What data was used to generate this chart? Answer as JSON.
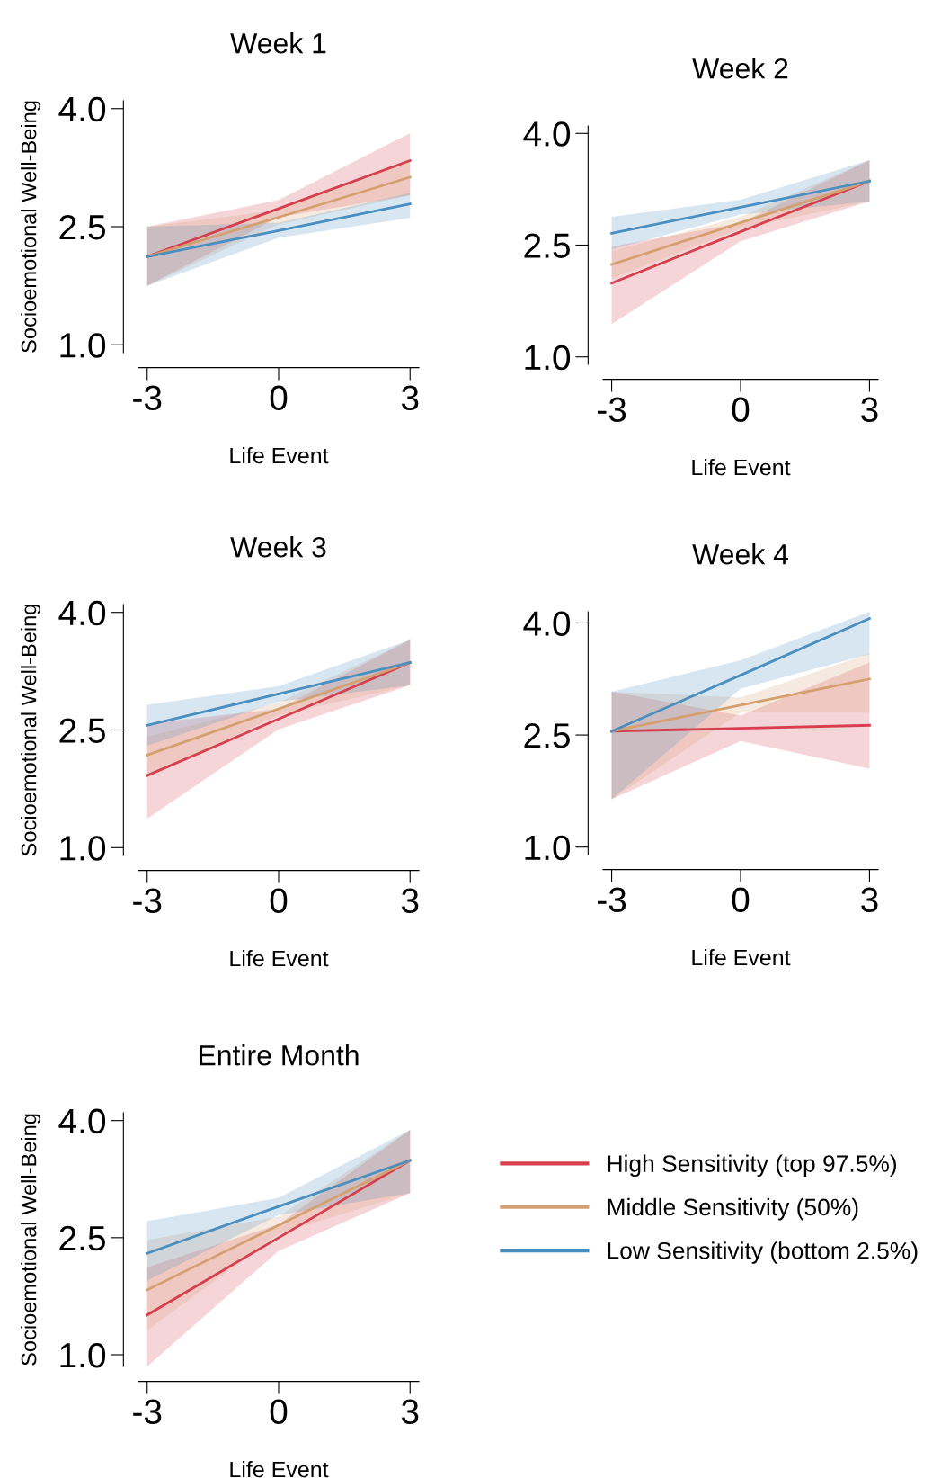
{
  "chart_data": [
    {
      "type": "line",
      "title": "Week 1",
      "xlabel": "Life Event",
      "ylabel": "Socioemotional Well-Being",
      "xlim": [
        -3.2,
        3.2
      ],
      "ylim": [
        0.9,
        4.1
      ],
      "xticks": [
        -3,
        0,
        3
      ],
      "yticks": [
        {
          "value": 1,
          "label": "1.0"
        },
        {
          "value": 2.5,
          "label": "2.5"
        },
        {
          "value": 4,
          "label": "4.0"
        }
      ],
      "series": [
        {
          "color": "#d6404e",
          "x": [
            -3,
            0,
            3
          ],
          "values": [
            2.12,
            2.73,
            3.34
          ],
          "lower": [
            1.75,
            2.62,
            2.9
          ],
          "upper": [
            2.5,
            2.84,
            3.69
          ]
        },
        {
          "color": "#d4a070",
          "x": [
            -3,
            0,
            3
          ],
          "values": [
            2.12,
            2.62,
            3.13
          ],
          "lower": [
            1.75,
            2.53,
            2.9
          ],
          "upper": [
            2.5,
            2.71,
            3.36
          ]
        },
        {
          "color": "#4a8fc0",
          "x": [
            -3,
            0,
            3
          ],
          "values": [
            2.12,
            2.45,
            2.79
          ],
          "lower": [
            1.75,
            2.36,
            2.61
          ],
          "upper": [
            2.5,
            2.55,
            2.93
          ]
        }
      ]
    },
    {
      "type": "line",
      "title": "Week 2",
      "xlabel": "Life Event",
      "xlim": [
        -3.2,
        3.2
      ],
      "ylim": [
        0.9,
        4.1
      ],
      "xticks": [
        -3,
        0,
        3
      ],
      "yticks": [
        {
          "value": 1,
          "label": "1.0"
        },
        {
          "value": 2.5,
          "label": "2.5"
        },
        {
          "value": 4,
          "label": "4.0"
        }
      ],
      "series": [
        {
          "color": "#d6404e",
          "x": [
            -3,
            0,
            3
          ],
          "values": [
            1.99,
            2.68,
            3.36
          ],
          "lower": [
            1.44,
            2.55,
            3.09
          ],
          "upper": [
            2.48,
            2.8,
            3.64
          ]
        },
        {
          "color": "#d4a070",
          "x": [
            -3,
            0,
            3
          ],
          "values": [
            2.24,
            2.8,
            3.36
          ],
          "lower": [
            2.05,
            2.72,
            3.09
          ],
          "upper": [
            2.42,
            2.88,
            3.64
          ]
        },
        {
          "color": "#4a8fc0",
          "x": [
            -3,
            0,
            3
          ],
          "values": [
            2.66,
            3.01,
            3.36
          ],
          "lower": [
            2.44,
            2.91,
            3.09
          ],
          "upper": [
            2.88,
            3.11,
            3.64
          ]
        }
      ]
    },
    {
      "type": "line",
      "title": "Week 3",
      "xlabel": "Life Event",
      "ylabel": "Socioemotional Well-Being",
      "xlim": [
        -3.2,
        3.2
      ],
      "ylim": [
        0.9,
        4.1
      ],
      "xticks": [
        -3,
        0,
        3
      ],
      "yticks": [
        {
          "value": 1,
          "label": "1.0"
        },
        {
          "value": 2.5,
          "label": "2.5"
        },
        {
          "value": 4,
          "label": "4.0"
        }
      ],
      "series": [
        {
          "color": "#d6404e",
          "x": [
            -3,
            0,
            3
          ],
          "values": [
            1.92,
            2.64,
            3.36
          ],
          "lower": [
            1.37,
            2.51,
            3.07
          ],
          "upper": [
            2.58,
            2.77,
            3.65
          ]
        },
        {
          "color": "#d4a070",
          "x": [
            -3,
            0,
            3
          ],
          "values": [
            2.18,
            2.77,
            3.36
          ],
          "lower": [
            1.9,
            2.69,
            3.07
          ],
          "upper": [
            2.41,
            2.85,
            3.65
          ]
        },
        {
          "color": "#4a8fc0",
          "x": [
            -3,
            0,
            3
          ],
          "values": [
            2.56,
            2.96,
            3.36
          ],
          "lower": [
            2.3,
            2.86,
            3.07
          ],
          "upper": [
            2.82,
            3.06,
            3.65
          ]
        }
      ]
    },
    {
      "type": "line",
      "title": "Week 4",
      "xlabel": "Life Event",
      "xlim": [
        -3.2,
        3.2
      ],
      "ylim": [
        0.9,
        4.15
      ],
      "xticks": [
        -3,
        0,
        3
      ],
      "yticks": [
        {
          "value": 1,
          "label": "1.0"
        },
        {
          "value": 2.5,
          "label": "2.5"
        },
        {
          "value": 4,
          "label": "4.0"
        }
      ],
      "series": [
        {
          "color": "#d6404e",
          "x": [
            -3,
            0,
            3
          ],
          "values": [
            2.55,
            2.59,
            2.63
          ],
          "lower": [
            1.64,
            2.42,
            2.05
          ],
          "upper": [
            3.08,
            2.76,
            3.47
          ]
        },
        {
          "color": "#d4a070",
          "x": [
            -3,
            0,
            3
          ],
          "values": [
            2.55,
            2.9,
            3.25
          ],
          "lower": [
            1.64,
            2.8,
            2.8
          ],
          "upper": [
            3.08,
            3.0,
            3.59
          ]
        },
        {
          "color": "#4a8fc0",
          "x": [
            -3,
            0,
            3
          ],
          "values": [
            2.55,
            3.3,
            4.06
          ],
          "lower": [
            1.64,
            3.12,
            3.58
          ],
          "upper": [
            3.08,
            3.5,
            4.15
          ]
        }
      ]
    },
    {
      "type": "line",
      "title": "Entire Month",
      "xlabel": "Life Event",
      "ylabel": "Socioemotional Well-Being",
      "xlim": [
        -3.2,
        3.2
      ],
      "ylim": [
        0.85,
        4.1
      ],
      "xticks": [
        -3,
        0,
        3
      ],
      "yticks": [
        {
          "value": 1,
          "label": "1.0"
        },
        {
          "value": 2.5,
          "label": "2.5"
        },
        {
          "value": 4,
          "label": "4.0"
        }
      ],
      "legend": "right",
      "series": [
        {
          "name": "High Sensitivity (top 97.5%)",
          "color": "#d6404e",
          "x": [
            -3,
            0,
            3
          ],
          "values": [
            1.51,
            2.5,
            3.49
          ],
          "lower": [
            0.85,
            2.33,
            3.07
          ],
          "upper": [
            2.12,
            2.67,
            3.88
          ]
        },
        {
          "name": "Middle Sensitivity (50%)",
          "color": "#d4a070",
          "x": [
            -3,
            0,
            3
          ],
          "values": [
            1.83,
            2.66,
            3.49
          ],
          "lower": [
            1.31,
            2.55,
            3.07
          ],
          "upper": [
            2.47,
            2.77,
            3.88
          ]
        },
        {
          "name": "Low Sensitivity (bottom 2.5%)",
          "color": "#4a8fc0",
          "x": [
            -3,
            0,
            3
          ],
          "values": [
            2.3,
            2.9,
            3.49
          ],
          "lower": [
            1.95,
            2.79,
            3.07
          ],
          "upper": [
            2.71,
            3.01,
            3.88
          ]
        }
      ]
    }
  ]
}
